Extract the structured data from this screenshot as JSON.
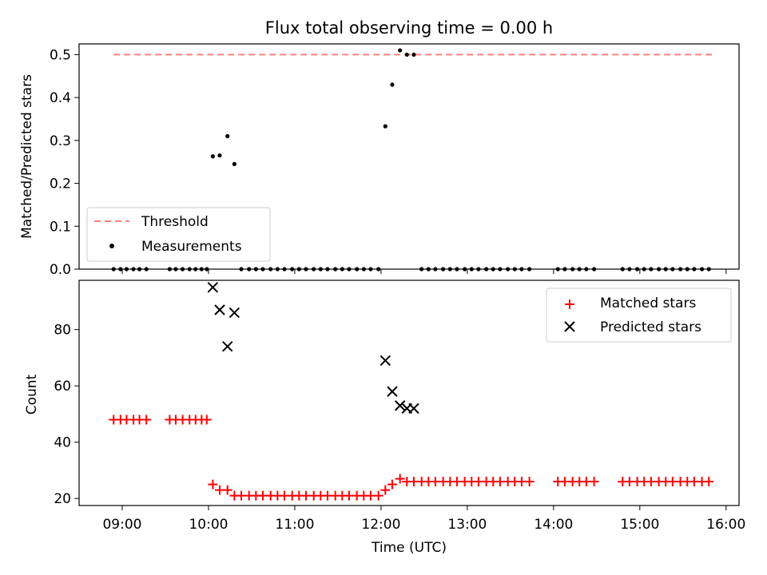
{
  "chart_data": {
    "title": "Flux total observing time = 0.00 h",
    "xlabel": "Time (UTC)",
    "x_units": "hours UTC (decimal)",
    "xlim": [
      8.5,
      16.15
    ],
    "xticks": [
      9,
      10,
      11,
      12,
      13,
      14,
      15,
      16
    ],
    "xtick_labels": [
      "09:00",
      "10:00",
      "11:00",
      "12:00",
      "13:00",
      "14:00",
      "15:00",
      "16:00"
    ],
    "x": [
      8.9,
      8.98,
      9.05,
      9.13,
      9.2,
      9.28,
      9.55,
      9.62,
      9.7,
      9.78,
      9.85,
      9.92,
      9.98,
      10.05,
      10.13,
      10.22,
      10.3,
      10.38,
      10.47,
      10.55,
      10.63,
      10.72,
      10.8,
      10.88,
      10.97,
      11.05,
      11.13,
      11.22,
      11.3,
      11.38,
      11.47,
      11.55,
      11.63,
      11.72,
      11.8,
      11.88,
      11.97,
      12.05,
      12.13,
      12.22,
      12.3,
      12.38,
      12.47,
      12.55,
      12.63,
      12.72,
      12.8,
      12.88,
      12.97,
      13.05,
      13.13,
      13.22,
      13.3,
      13.38,
      13.47,
      13.55,
      13.63,
      13.72,
      14.05,
      14.13,
      14.22,
      14.3,
      14.38,
      14.47,
      14.8,
      14.88,
      14.97,
      15.05,
      15.13,
      15.22,
      15.3,
      15.38,
      15.47,
      15.55,
      15.63,
      15.72,
      15.8
    ],
    "panels": [
      {
        "type": "scatter",
        "ylabel": "Matched/Predicted stars",
        "ylim": [
          0,
          0.525
        ],
        "yticks": [
          0.0,
          0.1,
          0.2,
          0.3,
          0.4,
          0.5
        ],
        "ytick_labels": [
          "0.0",
          "0.1",
          "0.2",
          "0.3",
          "0.4",
          "0.5"
        ],
        "legend_position": "lower-left",
        "threshold": {
          "name": "Threshold",
          "value": 0.5,
          "x_range": [
            8.9,
            15.85
          ],
          "color": "#ff7f7f"
        },
        "series": [
          {
            "name": "Measurements",
            "marker": "dot",
            "color": "#000000",
            "y": [
              0,
              0,
              0,
              0,
              0,
              0,
              0,
              0,
              0,
              0,
              0,
              0,
              0,
              0.263,
              0.265,
              0.31,
              0.245,
              0,
              0,
              0,
              0,
              0,
              0,
              0,
              0,
              0,
              0,
              0,
              0,
              0,
              0,
              0,
              0,
              0,
              0,
              0,
              0,
              0.333,
              0.43,
              0.51,
              0.5,
              0.5,
              0,
              0,
              0,
              0,
              0,
              0,
              0,
              0,
              0,
              0,
              0,
              0,
              0,
              0,
              0,
              0,
              0,
              0,
              0,
              0,
              0,
              0,
              0,
              0,
              0,
              0,
              0,
              0,
              0,
              0,
              0,
              0,
              0,
              0,
              0
            ]
          }
        ]
      },
      {
        "type": "scatter",
        "ylabel": "Count",
        "ylim": [
          17.5,
          97.5
        ],
        "yticks": [
          20,
          40,
          60,
          80
        ],
        "ytick_labels": [
          "20",
          "40",
          "60",
          "80"
        ],
        "legend_position": "upper-right",
        "series": [
          {
            "name": "Matched stars",
            "marker": "plus",
            "color": "#ff0000",
            "y": [
              48,
              48,
              48,
              48,
              48,
              48,
              48,
              48,
              48,
              48,
              48,
              48,
              48,
              25,
              23,
              23,
              21,
              21,
              21,
              21,
              21,
              21,
              21,
              21,
              21,
              21,
              21,
              21,
              21,
              21,
              21,
              21,
              21,
              21,
              21,
              21,
              21,
              23,
              25,
              27,
              26,
              26,
              26,
              26,
              26,
              26,
              26,
              26,
              26,
              26,
              26,
              26,
              26,
              26,
              26,
              26,
              26,
              26,
              26,
              26,
              26,
              26,
              26,
              26,
              26,
              26,
              26,
              26,
              26,
              26,
              26,
              26,
              26,
              26,
              26,
              26,
              26
            ]
          },
          {
            "name": "Predicted stars",
            "marker": "x",
            "color": "#000000",
            "points": [
              [
                10.05,
                95
              ],
              [
                10.13,
                87
              ],
              [
                10.22,
                74
              ],
              [
                10.3,
                86
              ],
              [
                12.05,
                69
              ],
              [
                12.13,
                58
              ],
              [
                12.22,
                53
              ],
              [
                12.3,
                52
              ],
              [
                12.38,
                52
              ]
            ]
          }
        ]
      }
    ]
  }
}
